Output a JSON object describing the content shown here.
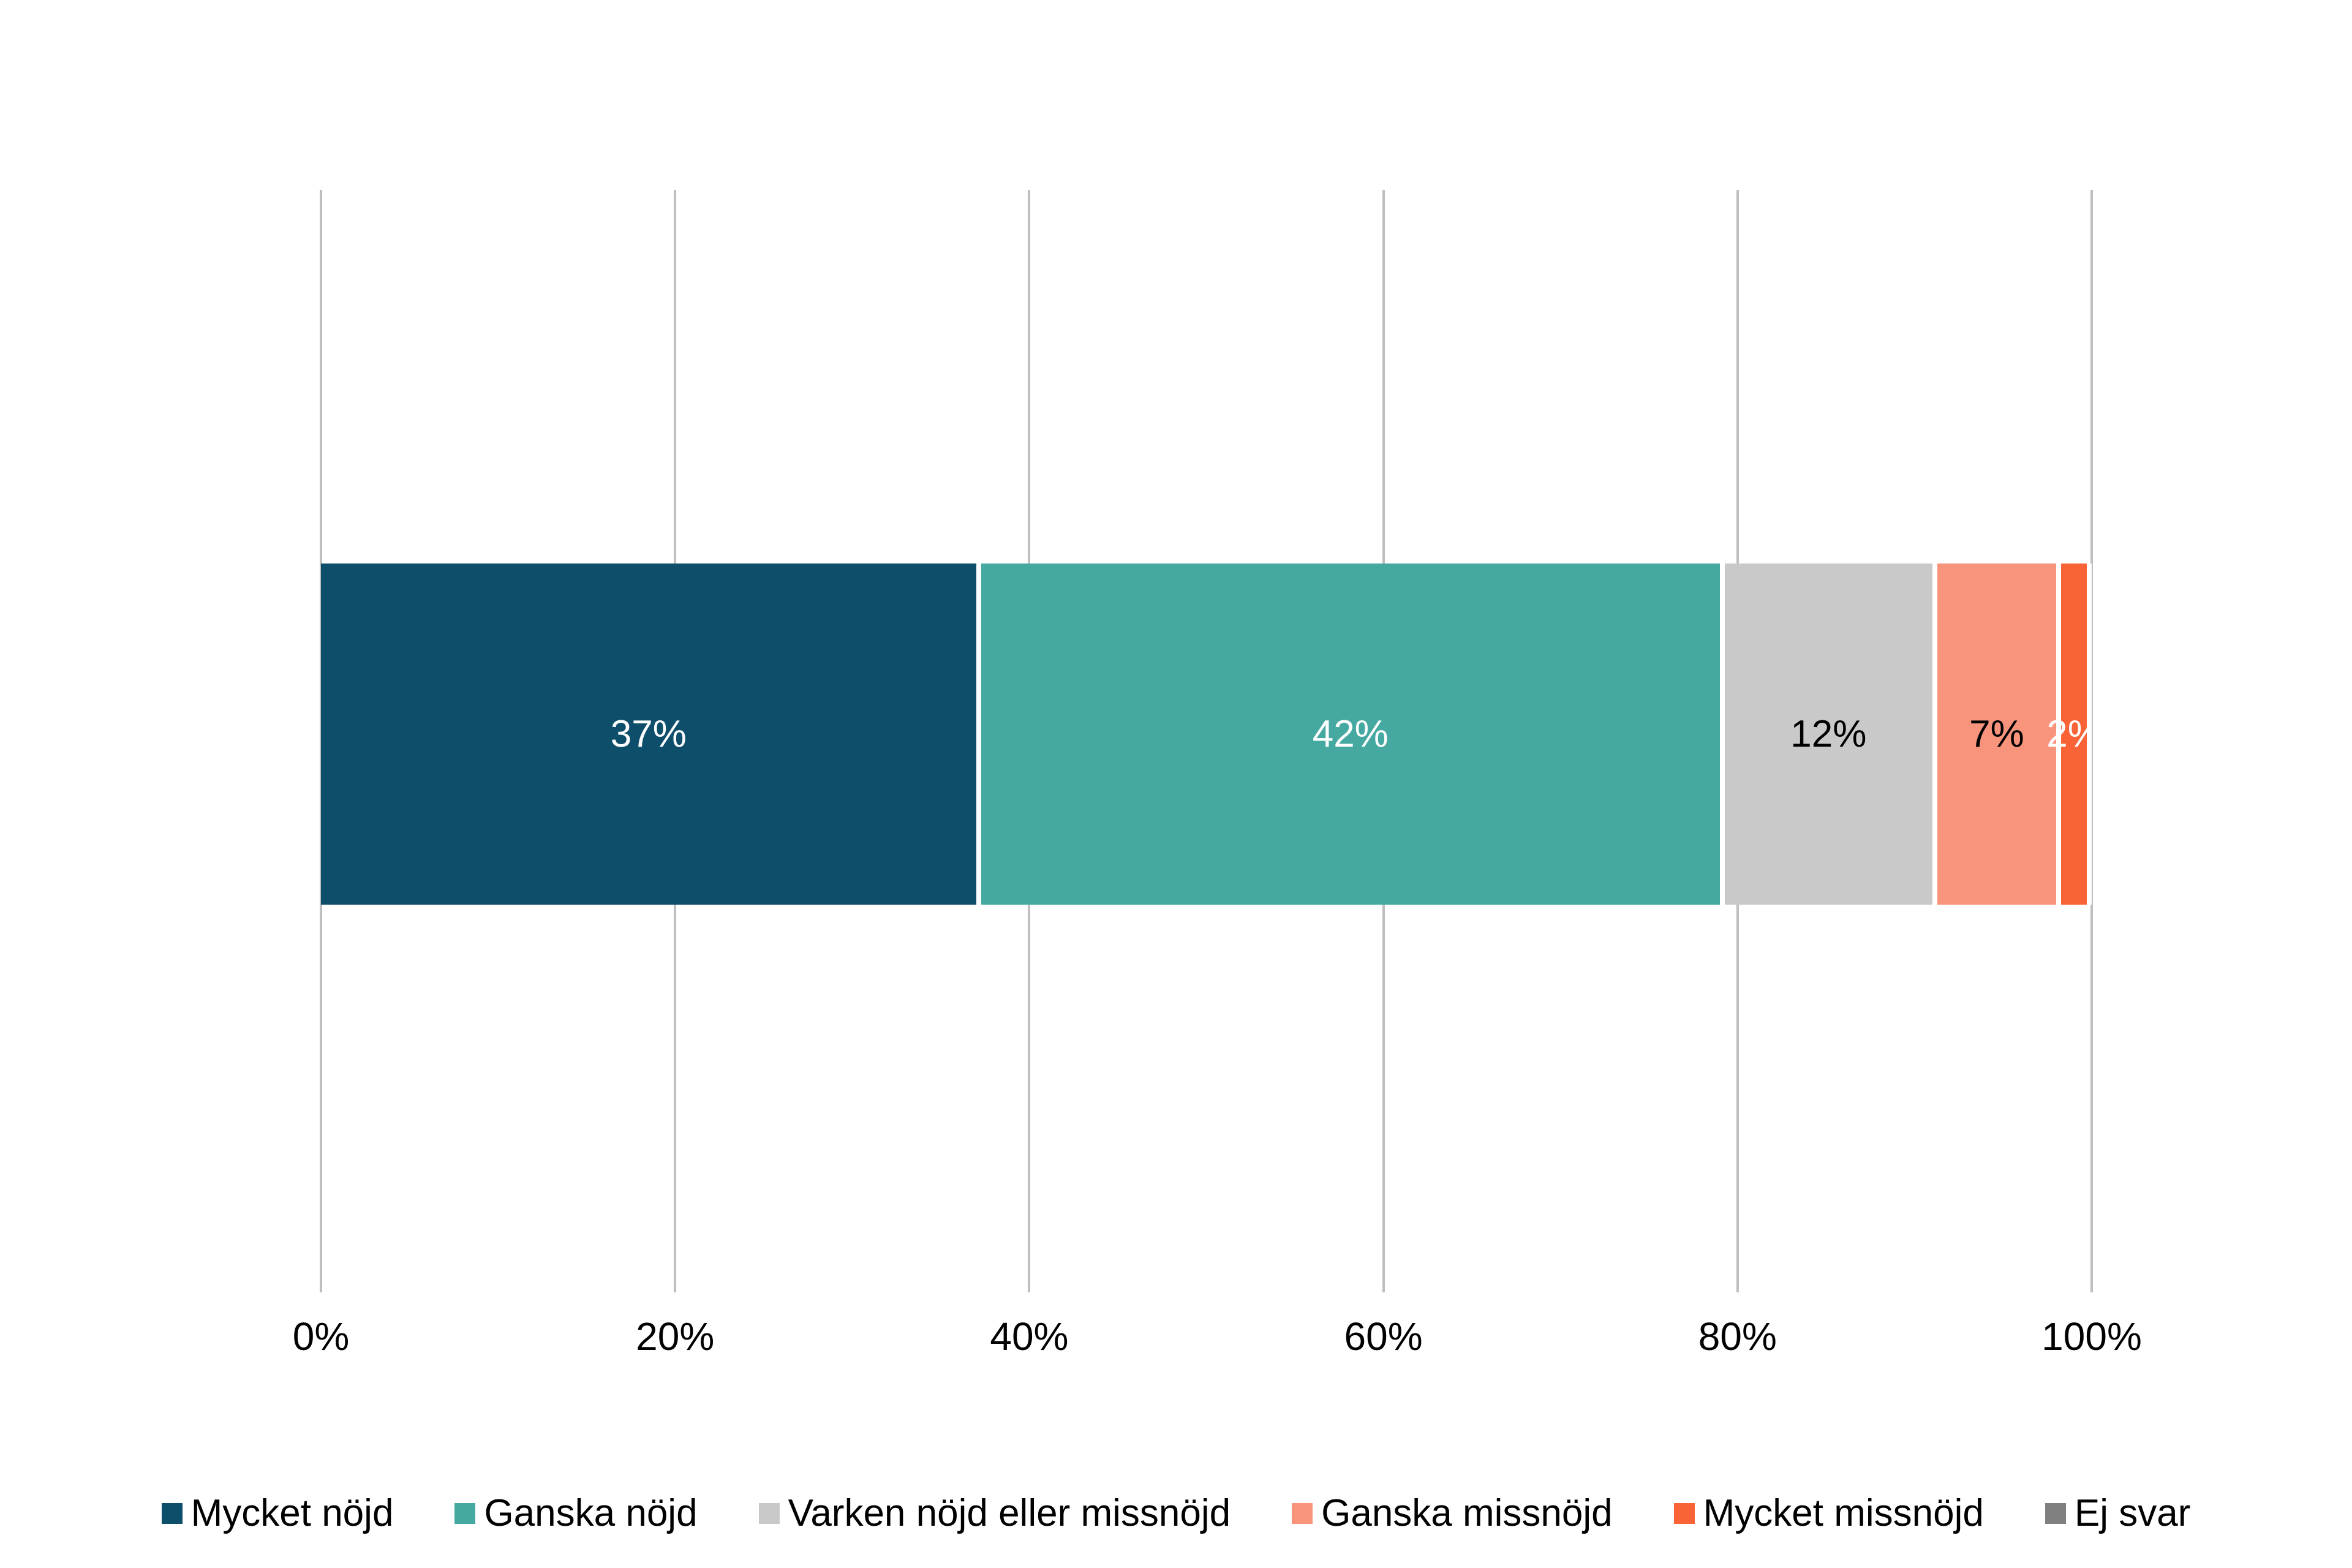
{
  "chart_data": {
    "type": "bar",
    "variant": "horizontal_stacked_100pct",
    "title": "",
    "xlabel": "",
    "ylabel": "",
    "xlim": [
      0,
      100
    ],
    "grid": true,
    "gridline_color": "#bfbfbf",
    "legend_position": "bottom",
    "x_ticks": [
      {
        "label": "0%",
        "value": 0
      },
      {
        "label": "20%",
        "value": 20
      },
      {
        "label": "40%",
        "value": 40
      },
      {
        "label": "60%",
        "value": 60
      },
      {
        "label": "80%",
        "value": 80
      },
      {
        "label": "100%",
        "value": 100
      }
    ],
    "series": [
      {
        "name": "Mycket nöjd",
        "slug": "mycket-nojd",
        "value": 37,
        "label": "37%",
        "color": "#0d4f6b",
        "label_color": "#ffffff"
      },
      {
        "name": "Ganska nöjd",
        "slug": "ganska-nojd",
        "value": 42,
        "label": "42%",
        "color": "#45a9a1",
        "label_color": "#ffffff"
      },
      {
        "name": "Varken nöjd eller missnöjd",
        "slug": "varken-nojd-eller-missnojd",
        "value": 12,
        "label": "12%",
        "color": "#c9c9c9",
        "label_color": "#000000"
      },
      {
        "name": "Ganska missnöjd",
        "slug": "ganska-missnojd",
        "value": 7,
        "label": "7%",
        "color": "#f9947c",
        "label_color": "#000000"
      },
      {
        "name": "Mycket missnöjd",
        "slug": "mycket-missnojd",
        "value": 2,
        "label": "2%",
        "color": "#f96335",
        "label_color": "#ffffff"
      },
      {
        "name": "Ej svar",
        "slug": "ej-svar",
        "value": 0,
        "label": "",
        "color": "#808080",
        "label_color": "#000000"
      }
    ]
  }
}
